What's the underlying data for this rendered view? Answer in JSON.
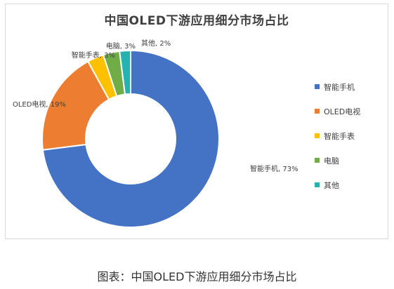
{
  "chart_data": {
    "type": "pie",
    "donut": true,
    "title": "中国OLED下游应用细分市场占比",
    "categories": [
      "智能手机",
      "OLED电视",
      "智能手表",
      "电脑",
      "其他"
    ],
    "values": [
      73,
      19,
      3,
      3,
      2
    ],
    "data_labels": [
      "智能手机, 73%",
      "OLED电视, 19%",
      "智能手表, 3%",
      "电脑, 3%",
      "其他, 2%"
    ],
    "colors": [
      "#4472C4",
      "#ED7D31",
      "#FFC000",
      "#70AD47",
      "#26B3B0"
    ],
    "legend_position": "right"
  },
  "caption": "图表：中国OLED下游应用细分市场占比"
}
